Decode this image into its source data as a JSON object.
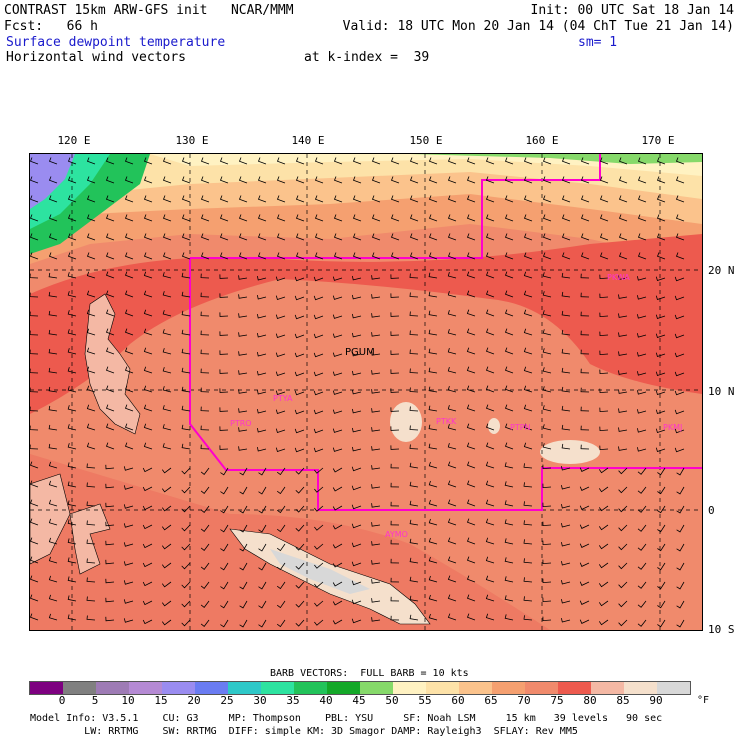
{
  "header": {
    "line1_left": "CONTRAST 15km ARW-GFS init   NCAR/MMM",
    "line1_right": "Init: 00 UTC Sat 18 Jan 14",
    "line2_left": "Fcst:   66 h",
    "line2_right": "Valid: 18 UTC Mon 20 Jan 14 (04 ChT Tue 21 Jan 14)",
    "field1": "Surface dewpoint temperature",
    "smoothing": "sm= 1",
    "field2": "Horizontal wind vectors",
    "level": "at k-index =  39"
  },
  "map": {
    "longitude_labels": [
      "120 E",
      "130 E",
      "140 E",
      "150 E",
      "160 E",
      "170 E"
    ],
    "latitude_labels": [
      "20 N",
      "10 N",
      "0",
      "10 S"
    ],
    "stations": [
      "PGUM",
      "PTYA",
      "PTRO",
      "PTKK",
      "PTPN",
      "PKMJ",
      "PKWA",
      "AYMO"
    ]
  },
  "legend": {
    "barb_text": "BARB VECTORS:  FULL BARB = 10 kts",
    "colorbar_ticks": [
      "0",
      "5",
      "10",
      "15",
      "20",
      "25",
      "30",
      "35",
      "40",
      "45",
      "50",
      "55",
      "60",
      "65",
      "70",
      "75",
      "80",
      "85",
      "90"
    ],
    "unit": "°F",
    "colors": [
      "#7d0080",
      "#808080",
      "#9e7bb5",
      "#b58ad4",
      "#9a8cf0",
      "#6a7cf2",
      "#2ec8c8",
      "#2de3a0",
      "#22c35a",
      "#14a828",
      "#86d96a",
      "#fff2c2",
      "#fde2a8",
      "#fbc38c",
      "#f5a070",
      "#f08a6c",
      "#ed5a4e",
      "#f4b8a4",
      "#f5e0cc",
      "#d8d8d8"
    ]
  },
  "model_info": {
    "line1": "Model Info: V3.5.1    CU: G3     MP: Thompson    PBL: YSU     SF: Noah LSM     15 km   39 levels   90 sec",
    "line2": "         LW: RRTMG    SW: RRTMG  DIFF: simple KM: 3D Smagor DAMP: Rayleigh3  SFLAY: Rev MM5"
  }
}
